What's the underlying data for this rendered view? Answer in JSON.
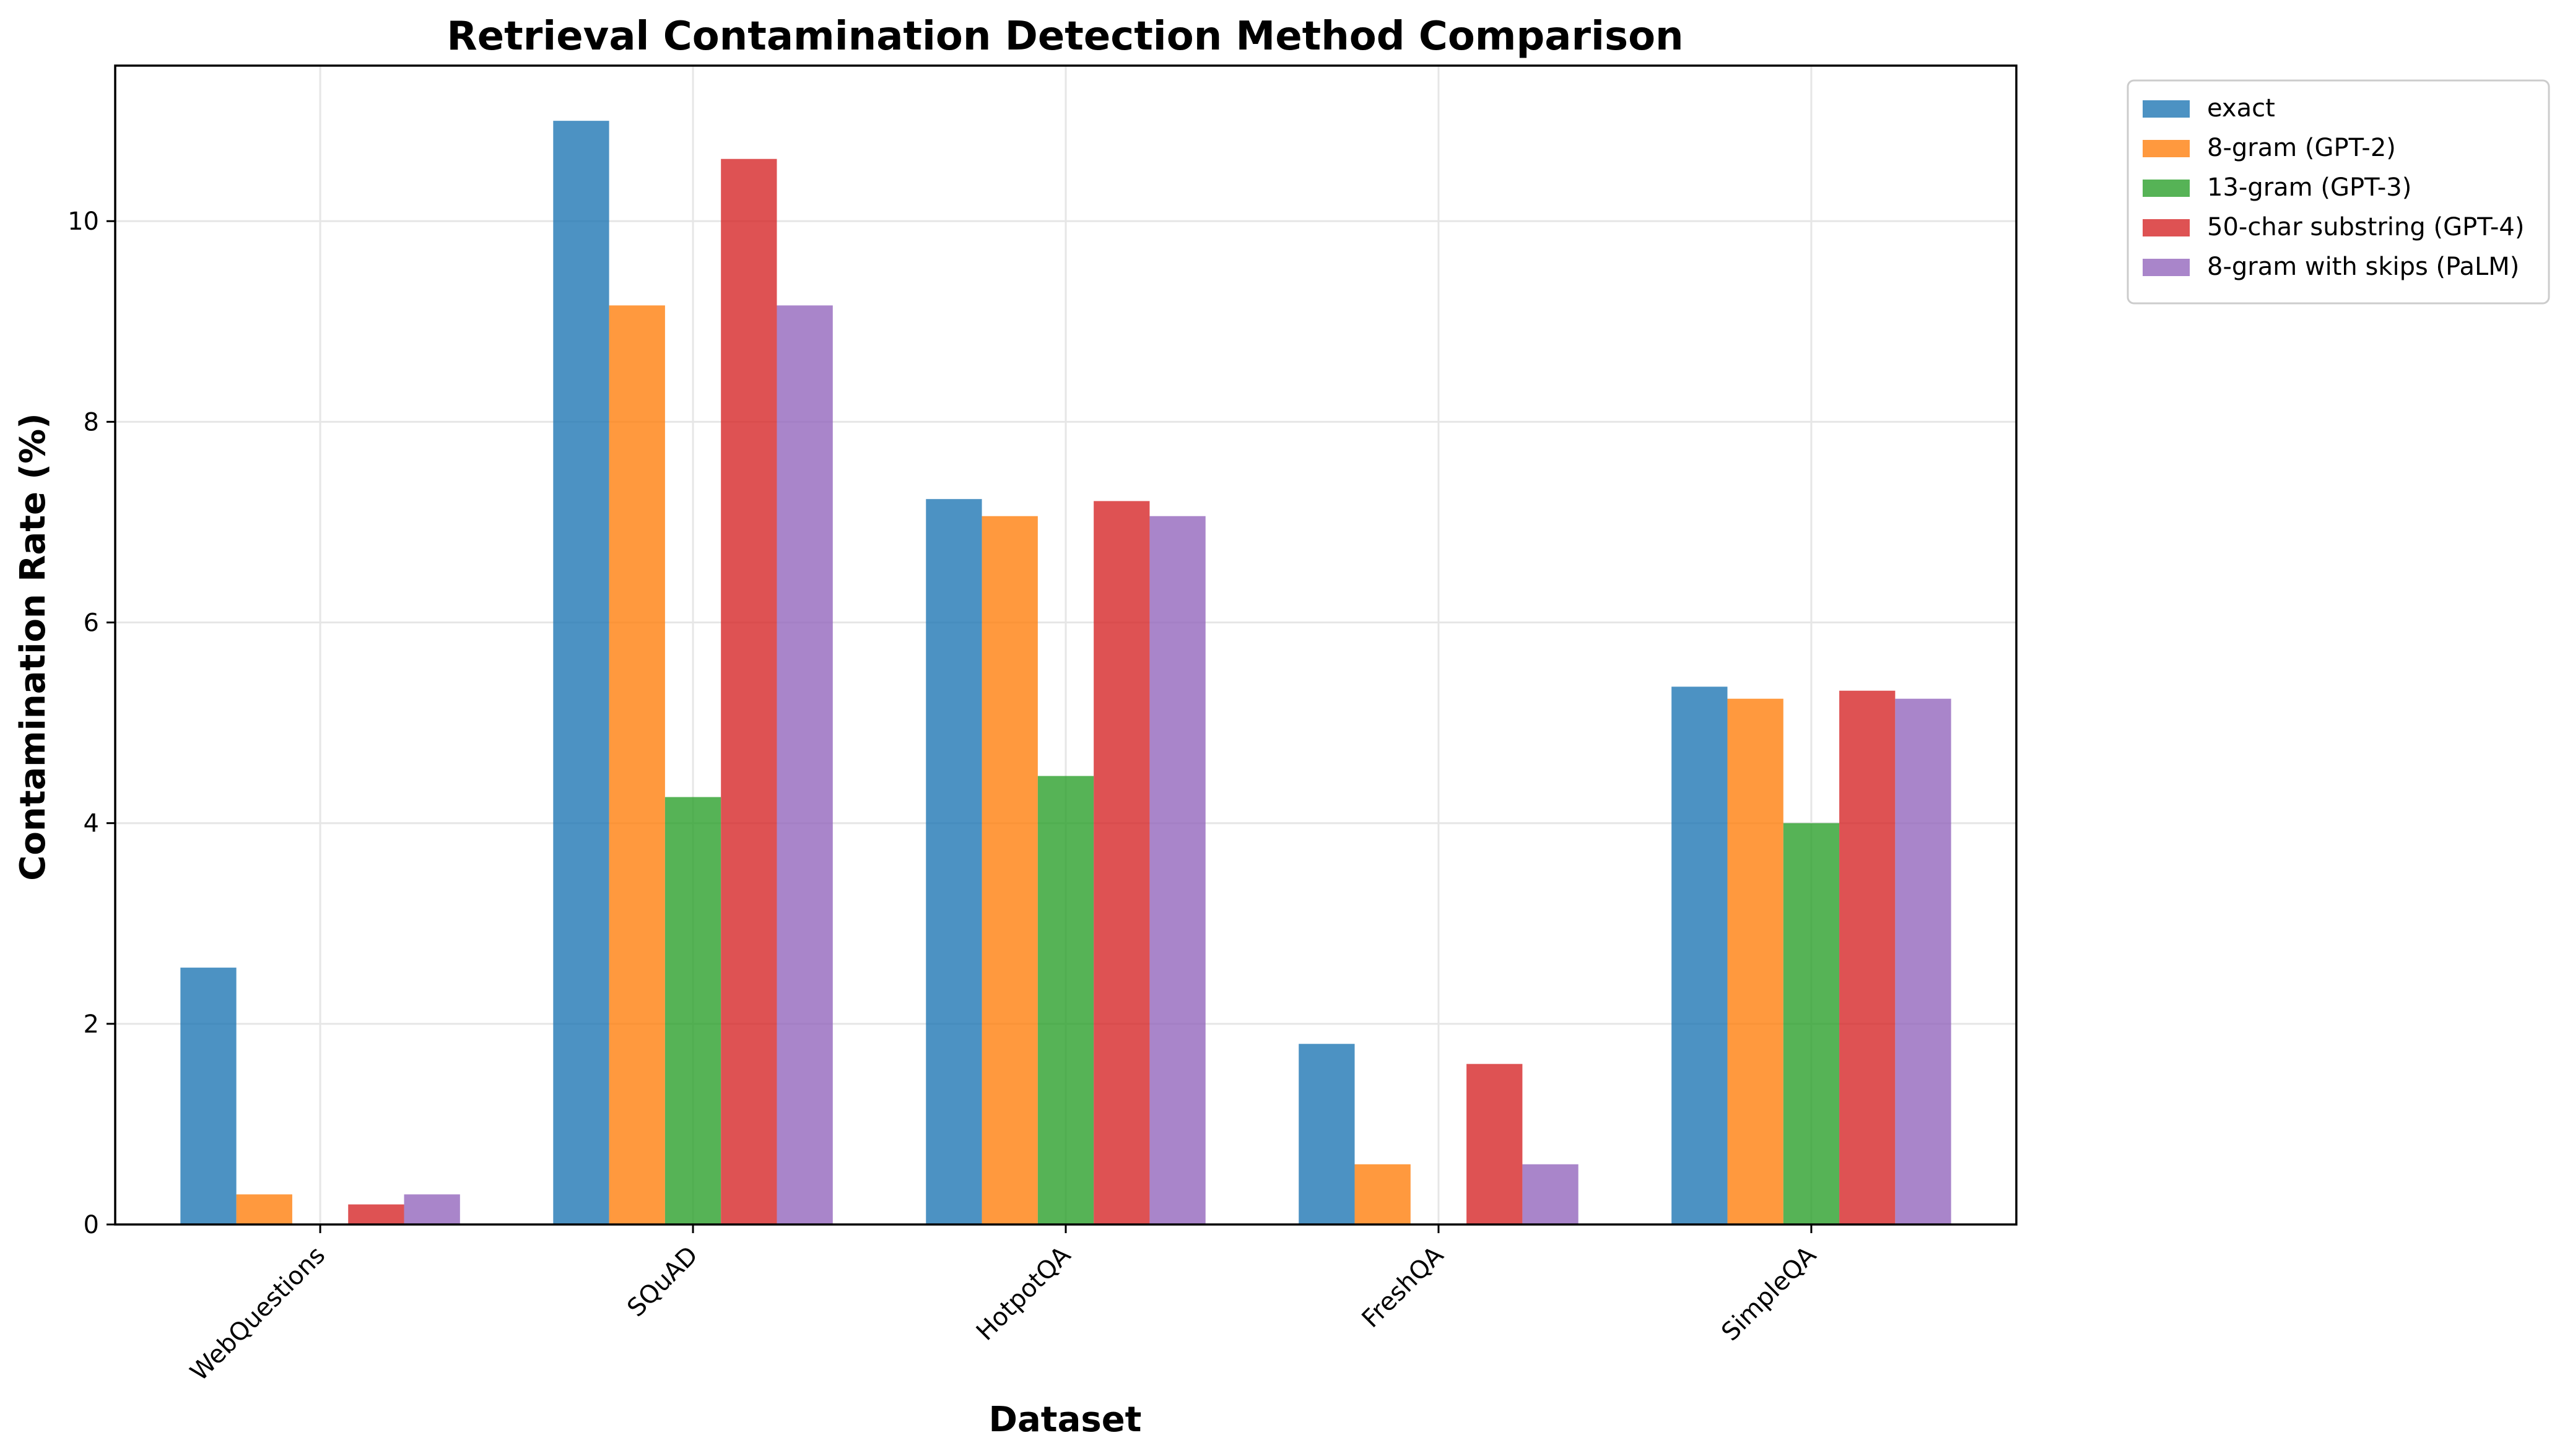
{
  "chart_data": {
    "type": "bar",
    "title": "Retrieval Contamination Detection Method Comparison",
    "xlabel": "Dataset",
    "ylabel": "Contamination Rate (%)",
    "categories": [
      "WebQuestions",
      "SQuAD",
      "HotpotQA",
      "FreshQA",
      "SimpleQA"
    ],
    "series": [
      {
        "name": "exact",
        "color": "#1f77b4",
        "values": [
          2.56,
          11.0,
          7.23,
          1.8,
          5.36
        ]
      },
      {
        "name": "8-gram (GPT-2)",
        "color": "#ff7f0e",
        "values": [
          0.3,
          9.16,
          7.06,
          0.6,
          5.24
        ]
      },
      {
        "name": "13-gram (GPT-3)",
        "color": "#2ca02c",
        "values": [
          0.0,
          4.26,
          4.47,
          0.0,
          4.0
        ]
      },
      {
        "name": "50-char substring (GPT-4)",
        "color": "#d62728",
        "values": [
          0.2,
          10.62,
          7.21,
          1.6,
          5.32
        ]
      },
      {
        "name": "8-gram with skips (PaLM)",
        "color": "#9467bd",
        "values": [
          0.3,
          9.16,
          7.06,
          0.6,
          5.24
        ]
      }
    ],
    "ylim": [
      0,
      11.55
    ],
    "yticks": [
      0,
      2,
      4,
      6,
      8,
      10
    ],
    "grid": true,
    "legend": "outside-top-right"
  }
}
